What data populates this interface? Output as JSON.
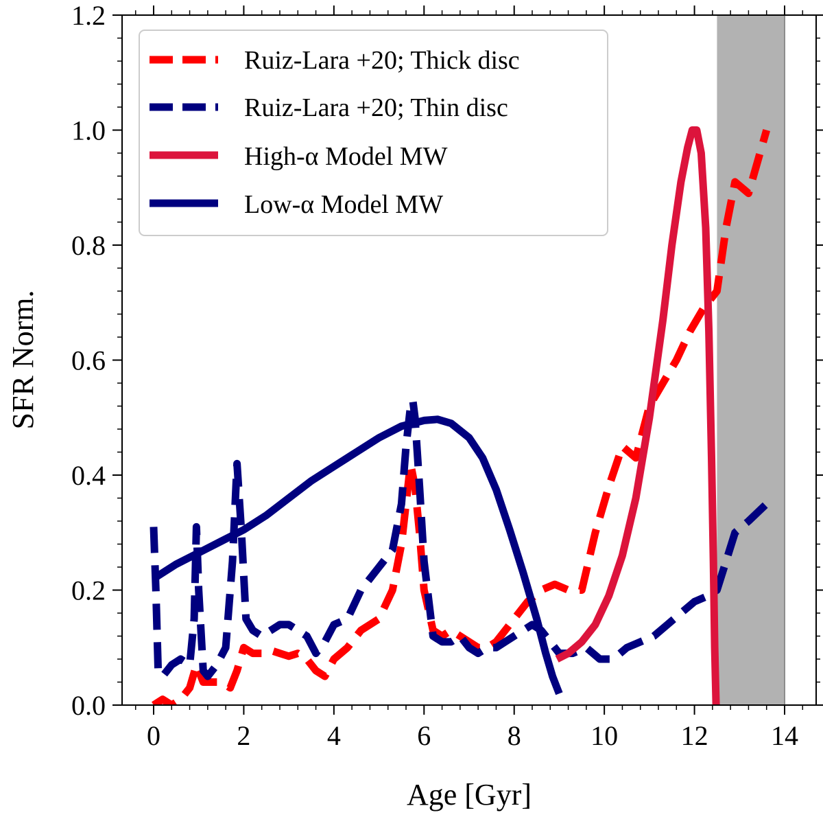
{
  "chart_data": {
    "type": "line",
    "title": "",
    "xlabel": "Age [Gyr]",
    "ylabel": "SFR Norm.",
    "xlim": [
      -0.7,
      14.7
    ],
    "ylim": [
      0.0,
      1.2
    ],
    "xticks": [
      0,
      2,
      4,
      6,
      8,
      10,
      12,
      14
    ],
    "xtick_labels": [
      "0",
      "2",
      "4",
      "6",
      "8",
      "10",
      "12",
      "14"
    ],
    "yticks": [
      0.0,
      0.2,
      0.4,
      0.6,
      0.8,
      1.0,
      1.2
    ],
    "ytick_labels": [
      "0.0",
      "0.2",
      "0.4",
      "0.6",
      "0.8",
      "1.0",
      "1.2"
    ],
    "grid": false,
    "legend_position": "top-left",
    "shaded_region": {
      "x": [
        12.5,
        14.0
      ],
      "color": "#b2b2b2"
    },
    "series": [
      {
        "name": "Ruiz-Lara +20; Thick disc",
        "legend_label": "Ruiz-Lara +20; Thick disc",
        "color": "#ff0000",
        "style": "dashed",
        "x": [
          0.0,
          0.2,
          0.4,
          0.6,
          0.8,
          0.95,
          1.1,
          1.3,
          1.5,
          1.7,
          1.85,
          2.0,
          2.2,
          2.4,
          2.6,
          2.8,
          3.0,
          3.2,
          3.4,
          3.6,
          3.8,
          4.0,
          4.3,
          4.6,
          5.0,
          5.3,
          5.5,
          5.6,
          5.7,
          5.8,
          5.9,
          6.0,
          6.2,
          6.4,
          6.6,
          6.8,
          7.0,
          7.2,
          7.4,
          7.6,
          7.8,
          8.0,
          8.3,
          8.6,
          8.9,
          9.2,
          9.5,
          9.8,
          10.1,
          10.4,
          10.7,
          11.0,
          11.3,
          11.6,
          11.9,
          12.2,
          12.5,
          12.7,
          12.9,
          13.2,
          13.6
        ],
        "values": [
          0.0,
          0.01,
          0.0,
          0.01,
          0.03,
          0.07,
          0.04,
          0.04,
          0.04,
          0.03,
          0.06,
          0.1,
          0.09,
          0.09,
          0.095,
          0.09,
          0.085,
          0.09,
          0.08,
          0.06,
          0.05,
          0.08,
          0.1,
          0.13,
          0.15,
          0.2,
          0.28,
          0.35,
          0.42,
          0.38,
          0.3,
          0.2,
          0.13,
          0.12,
          0.13,
          0.12,
          0.11,
          0.1,
          0.1,
          0.11,
          0.13,
          0.15,
          0.18,
          0.2,
          0.21,
          0.2,
          0.2,
          0.3,
          0.38,
          0.45,
          0.43,
          0.52,
          0.56,
          0.6,
          0.65,
          0.69,
          0.72,
          0.83,
          0.91,
          0.89,
          1.0
        ]
      },
      {
        "name": "Ruiz-Lara +20; Thin disc",
        "legend_label": "Ruiz-Lara +20; Thin disc",
        "color": "#00007f",
        "style": "dashed",
        "x": [
          0.0,
          0.05,
          0.1,
          0.2,
          0.4,
          0.6,
          0.8,
          0.9,
          0.95,
          1.0,
          1.1,
          1.2,
          1.4,
          1.6,
          1.75,
          1.85,
          1.95,
          2.05,
          2.2,
          2.4,
          2.6,
          2.8,
          3.0,
          3.2,
          3.4,
          3.6,
          3.8,
          4.0,
          4.3,
          4.6,
          5.0,
          5.3,
          5.5,
          5.6,
          5.7,
          5.75,
          5.8,
          5.9,
          6.0,
          6.2,
          6.4,
          6.6,
          6.8,
          7.0,
          7.2,
          7.4,
          7.6,
          7.8,
          8.0,
          8.2,
          8.4,
          8.6,
          8.8,
          9.0,
          9.3,
          9.6,
          9.9,
          10.2,
          10.5,
          10.8,
          11.1,
          11.4,
          11.7,
          12.0,
          12.3,
          12.5,
          12.7,
          12.9,
          13.2,
          13.6
        ],
        "values": [
          0.31,
          0.2,
          0.06,
          0.05,
          0.07,
          0.08,
          0.07,
          0.15,
          0.31,
          0.2,
          0.06,
          0.05,
          0.07,
          0.1,
          0.25,
          0.42,
          0.3,
          0.15,
          0.13,
          0.12,
          0.13,
          0.14,
          0.14,
          0.13,
          0.12,
          0.09,
          0.11,
          0.14,
          0.15,
          0.2,
          0.24,
          0.27,
          0.35,
          0.45,
          0.52,
          0.53,
          0.5,
          0.38,
          0.25,
          0.12,
          0.11,
          0.11,
          0.12,
          0.1,
          0.09,
          0.1,
          0.1,
          0.11,
          0.12,
          0.13,
          0.14,
          0.13,
          0.11,
          0.09,
          0.09,
          0.1,
          0.08,
          0.08,
          0.1,
          0.11,
          0.12,
          0.14,
          0.16,
          0.18,
          0.19,
          0.2,
          0.25,
          0.3,
          0.32,
          0.35
        ]
      },
      {
        "name": "High-α Model MW",
        "legend_label": "High-α Model MW",
        "color": "#dc143c",
        "style": "solid",
        "x": [
          8.95,
          9.2,
          9.5,
          9.8,
          10.1,
          10.4,
          10.7,
          11.0,
          11.3,
          11.5,
          11.7,
          11.85,
          11.95,
          12.05,
          12.15,
          12.25,
          12.32,
          12.38,
          12.42,
          12.45,
          12.48
        ],
        "values": [
          0.08,
          0.09,
          0.11,
          0.14,
          0.19,
          0.26,
          0.36,
          0.5,
          0.67,
          0.8,
          0.91,
          0.97,
          1.0,
          1.0,
          0.96,
          0.83,
          0.65,
          0.43,
          0.25,
          0.1,
          0.0
        ]
      },
      {
        "name": "Low-α Model MW",
        "legend_label": "Low-α Model MW",
        "color": "#00007f",
        "style": "solid",
        "x": [
          0.0,
          0.5,
          1.0,
          1.5,
          2.0,
          2.5,
          3.0,
          3.5,
          4.0,
          4.5,
          5.0,
          5.5,
          6.0,
          6.3,
          6.6,
          7.0,
          7.3,
          7.6,
          7.9,
          8.2,
          8.5,
          8.7,
          8.85,
          8.95,
          9.0
        ],
        "values": [
          0.22,
          0.245,
          0.265,
          0.285,
          0.305,
          0.33,
          0.36,
          0.39,
          0.415,
          0.44,
          0.465,
          0.485,
          0.495,
          0.497,
          0.49,
          0.465,
          0.43,
          0.375,
          0.305,
          0.23,
          0.15,
          0.09,
          0.05,
          0.03,
          0.02
        ]
      }
    ]
  }
}
